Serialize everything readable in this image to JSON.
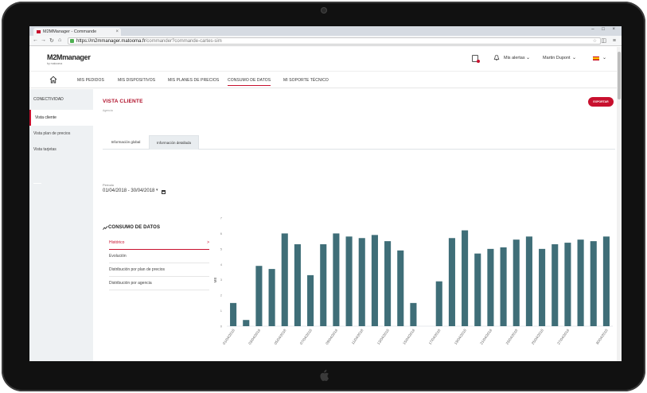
{
  "browser": {
    "tab_title": "M2MManager - Commande",
    "url_host": "https://m2mmanager.matooma.fr",
    "url_path": "/commander?commande-cartes-sim",
    "ghost_title": "M2MManager - Matooma"
  },
  "header": {
    "logo": "M2Mmanager",
    "logo_sub": "by matooma",
    "alerts_label": "Mis alertas",
    "user_name": "Martin Dupont"
  },
  "nav": {
    "items": [
      {
        "label": "MIS PEDIDOS"
      },
      {
        "label": "MIS DISPOSITIVOS"
      },
      {
        "label": "MIS PLANES DE PRECIOS"
      },
      {
        "label": "CONSUMO DE DATOS"
      },
      {
        "label": "MI SOPORTE TÉCNICO"
      }
    ],
    "active_index": 3
  },
  "sidebar": {
    "heading": "CONECTIVIDAD",
    "items": [
      {
        "label": "Vista cliente"
      },
      {
        "label": "Vista plan de precios"
      },
      {
        "label": "Vista tarjetas"
      }
    ],
    "active_index": 0
  },
  "page": {
    "title": "VISTA CLIENTE",
    "subtitle": "Agencia",
    "export_label": "EXPORTAR",
    "tabs": [
      {
        "label": "Información global"
      },
      {
        "label": "Información detallada"
      }
    ],
    "active_tab": 1,
    "period_label": "Período",
    "period_value": "01/04/2018 - 30/04/2018"
  },
  "section": {
    "title": "CONSUMO DE DATOS",
    "menu": [
      {
        "label": "Histórico"
      },
      {
        "label": "Evolución"
      },
      {
        "label": "Distribución por plan de precios"
      },
      {
        "label": "Distribución por agencia"
      }
    ],
    "active_index": 0,
    "active_arrow": ">"
  },
  "colors": {
    "accent": "#c8102e",
    "bar": "#3f6e78"
  },
  "chart_data": {
    "type": "bar",
    "categories": [
      "01/04/2018",
      "02/04/2018",
      "03/04/2018",
      "04/04/2018",
      "05/04/2018",
      "06/04/2018",
      "07/04/2018",
      "08/04/2018",
      "09/04/2018",
      "10/04/2018",
      "11/04/2018",
      "12/04/2018",
      "13/04/2018",
      "14/04/2018",
      "15/04/2018",
      "16/04/2018",
      "17/04/2018",
      "18/04/2018",
      "19/04/2018",
      "20/04/2018",
      "21/04/2018",
      "22/04/2018",
      "23/04/2018",
      "24/04/2018",
      "25/04/2018",
      "26/04/2018",
      "27/04/2018",
      "28/04/2018",
      "29/04/2018",
      "30/04/2018"
    ],
    "tick_labels": [
      "01/04/2018",
      "03/04/2018",
      "05/04/2018",
      "07/04/2018",
      "09/04/2018",
      "11/04/2018",
      "13/04/2018",
      "15/04/2018",
      "17/04/2018",
      "19/04/2018",
      "21/04/2018",
      "23/04/2018",
      "25/04/2018",
      "27/04/2018",
      "30/04/2018"
    ],
    "tick_indices": [
      0,
      2,
      4,
      6,
      8,
      10,
      12,
      14,
      16,
      18,
      20,
      22,
      24,
      26,
      29
    ],
    "values": [
      1.5,
      0.4,
      3.9,
      3.7,
      6.0,
      5.3,
      3.3,
      5.3,
      6.0,
      5.8,
      5.7,
      5.9,
      5.5,
      4.9,
      1.5,
      0,
      2.9,
      5.7,
      6.2,
      4.7,
      5.0,
      5.1,
      5.6,
      5.8,
      5.0,
      5.3,
      5.4,
      5.6,
      5.5,
      5.8
    ],
    "ylabel": "MB",
    "ylim": [
      0,
      7
    ],
    "yticks": [
      "0",
      "1",
      "2",
      "3",
      "4",
      "5",
      "6",
      "7"
    ],
    "grid": false
  }
}
